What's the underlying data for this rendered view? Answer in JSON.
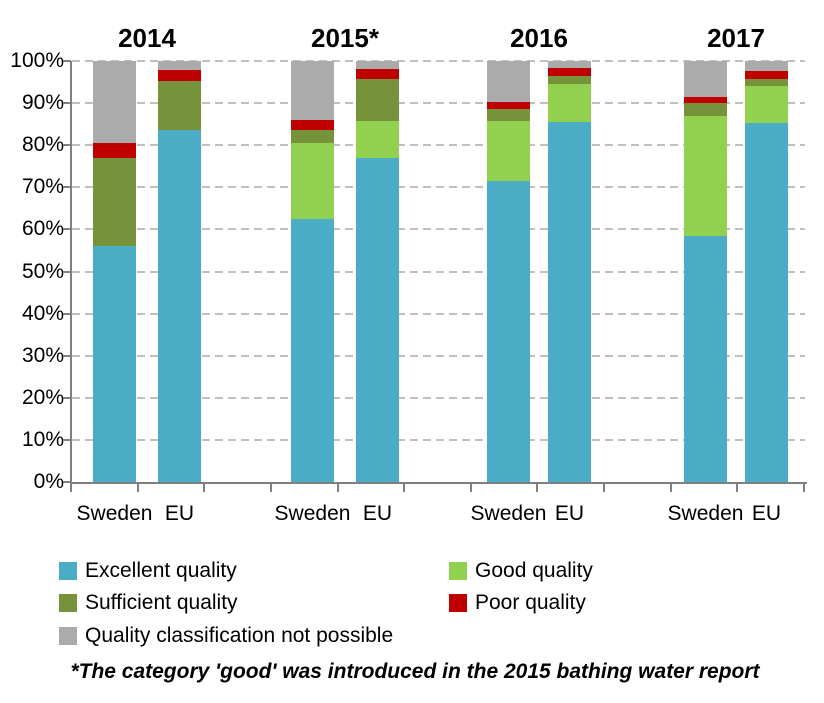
{
  "chart_data": {
    "type": "bar",
    "stacked": true,
    "title": "",
    "xlabel": "",
    "ylabel": "",
    "unit": "%",
    "ylim": [
      0,
      100
    ],
    "grid": "horizontal-dashed",
    "legend_position": "bottom-left",
    "yticks": [
      "100%",
      "90%",
      "80%",
      "70%",
      "60%",
      "50%",
      "40%",
      "30%",
      "20%",
      "10%",
      "0%"
    ],
    "series_order": [
      "excellent",
      "good",
      "sufficient",
      "poor",
      "not_possible"
    ],
    "legend": [
      {
        "key": "excellent",
        "label": "Excellent quality",
        "color": "#4BACC6"
      },
      {
        "key": "good",
        "label": "Good quality",
        "color": "#92D050"
      },
      {
        "key": "sufficient",
        "label": "Sufficient quality",
        "color": "#76933C"
      },
      {
        "key": "poor",
        "label": "Poor quality",
        "color": "#C00000"
      },
      {
        "key": "not_possible",
        "label": "Quality classification not possible",
        "color": "#ABABAB"
      }
    ],
    "groups": [
      {
        "year": "2014",
        "bars": [
          {
            "label": "Sweden",
            "values": [
              56.0,
              0.0,
              21.0,
              3.5,
              19.5
            ]
          },
          {
            "label": "EU",
            "values": [
              83.5,
              0.0,
              11.8,
              2.5,
              2.2
            ]
          }
        ]
      },
      {
        "year": "2015*",
        "bars": [
          {
            "label": "Sweden",
            "values": [
              62.5,
              18.0,
              3.0,
              2.5,
              14.0
            ]
          },
          {
            "label": "EU",
            "values": [
              77.0,
              8.7,
              10.0,
              2.3,
              2.0
            ]
          }
        ]
      },
      {
        "year": "2016",
        "bars": [
          {
            "label": "Sweden",
            "values": [
              71.5,
              14.2,
              2.8,
              1.8,
              9.7
            ]
          },
          {
            "label": "EU",
            "values": [
              85.5,
              9.0,
              2.0,
              1.8,
              1.7
            ]
          }
        ]
      },
      {
        "year": "2017",
        "bars": [
          {
            "label": "Sweden",
            "values": [
              58.5,
              28.5,
              3.0,
              1.5,
              8.5
            ]
          },
          {
            "label": "EU",
            "values": [
              85.3,
              8.7,
              1.8,
              1.8,
              2.4
            ]
          }
        ]
      }
    ],
    "footnote": "*The category 'good' was introduced  in the 2015 bathing water report",
    "colors": {
      "gridline": "#BFBFBF",
      "axis": "#7F7F7F"
    }
  }
}
